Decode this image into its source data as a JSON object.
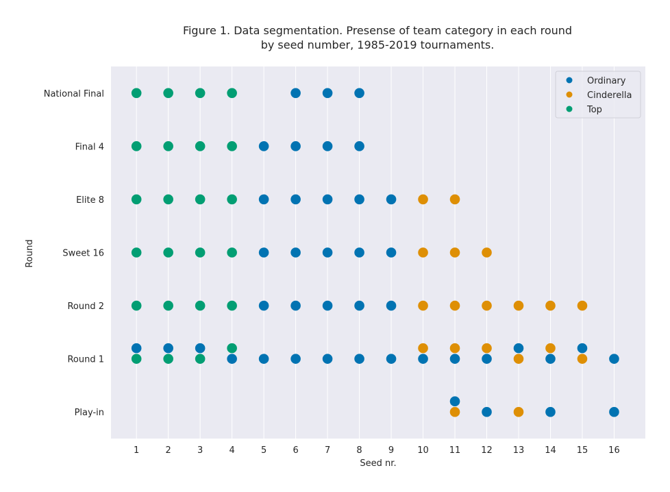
{
  "chart_data": {
    "type": "scatter",
    "title_lines": [
      "Figure 1. Data segmentation. Presense of team category in each round",
      "by seed number, 1985-2019 tournaments."
    ],
    "xlabel": "Seed nr.",
    "ylabel": "Round",
    "x_ticks": [
      1,
      2,
      3,
      4,
      5,
      6,
      7,
      8,
      9,
      10,
      11,
      12,
      13,
      14,
      15,
      16
    ],
    "x_tick_labels": [
      "1",
      "2",
      "3",
      "4",
      "5",
      "6",
      "7",
      "8",
      "9",
      "10",
      "11",
      "12",
      "13",
      "14",
      "15",
      "16"
    ],
    "rounds": [
      "Play-in",
      "Round 1",
      "Round 2",
      "Sweet 16",
      "Elite 8",
      "Final 4",
      "National Final"
    ],
    "xlim": [
      0.2,
      16.98
    ],
    "ylim": [
      -0.5,
      6.5
    ],
    "grid": "vertical",
    "legend_position": "top-right",
    "colors": {
      "background": "#eaeaf2",
      "grid": "#ffffff",
      "Ordinary": "#0173b2",
      "Cinderella": "#de8f05",
      "Top": "#029e73"
    },
    "series": [
      {
        "name": "Ordinary",
        "points": [
          {
            "x": 11,
            "y": "Play-in",
            "offset": 0.2
          },
          {
            "x": 12,
            "y": "Play-in",
            "offset": 0
          },
          {
            "x": 14,
            "y": "Play-in",
            "offset": 0
          },
          {
            "x": 16,
            "y": "Play-in",
            "offset": 0
          },
          {
            "x": 1,
            "y": "Round 1",
            "offset": 0.2
          },
          {
            "x": 2,
            "y": "Round 1",
            "offset": 0.2
          },
          {
            "x": 3,
            "y": "Round 1",
            "offset": 0.2
          },
          {
            "x": 13,
            "y": "Round 1",
            "offset": 0.2
          },
          {
            "x": 15,
            "y": "Round 1",
            "offset": 0.2
          },
          {
            "x": 4,
            "y": "Round 1",
            "offset": 0
          },
          {
            "x": 5,
            "y": "Round 1",
            "offset": 0
          },
          {
            "x": 6,
            "y": "Round 1",
            "offset": 0
          },
          {
            "x": 7,
            "y": "Round 1",
            "offset": 0
          },
          {
            "x": 8,
            "y": "Round 1",
            "offset": 0
          },
          {
            "x": 9,
            "y": "Round 1",
            "offset": 0
          },
          {
            "x": 10,
            "y": "Round 1",
            "offset": 0
          },
          {
            "x": 11,
            "y": "Round 1",
            "offset": 0
          },
          {
            "x": 12,
            "y": "Round 1",
            "offset": 0
          },
          {
            "x": 14,
            "y": "Round 1",
            "offset": 0
          },
          {
            "x": 16,
            "y": "Round 1",
            "offset": 0
          },
          {
            "x": 5,
            "y": "Round 2",
            "offset": 0
          },
          {
            "x": 6,
            "y": "Round 2",
            "offset": 0
          },
          {
            "x": 7,
            "y": "Round 2",
            "offset": 0
          },
          {
            "x": 8,
            "y": "Round 2",
            "offset": 0
          },
          {
            "x": 9,
            "y": "Round 2",
            "offset": 0
          },
          {
            "x": 5,
            "y": "Sweet 16",
            "offset": 0
          },
          {
            "x": 6,
            "y": "Sweet 16",
            "offset": 0
          },
          {
            "x": 7,
            "y": "Sweet 16",
            "offset": 0
          },
          {
            "x": 8,
            "y": "Sweet 16",
            "offset": 0
          },
          {
            "x": 9,
            "y": "Sweet 16",
            "offset": 0
          },
          {
            "x": 5,
            "y": "Elite 8",
            "offset": 0
          },
          {
            "x": 6,
            "y": "Elite 8",
            "offset": 0
          },
          {
            "x": 7,
            "y": "Elite 8",
            "offset": 0
          },
          {
            "x": 8,
            "y": "Elite 8",
            "offset": 0
          },
          {
            "x": 9,
            "y": "Elite 8",
            "offset": 0
          },
          {
            "x": 5,
            "y": "Final 4",
            "offset": 0
          },
          {
            "x": 6,
            "y": "Final 4",
            "offset": 0
          },
          {
            "x": 7,
            "y": "Final 4",
            "offset": 0
          },
          {
            "x": 8,
            "y": "Final 4",
            "offset": 0
          },
          {
            "x": 6,
            "y": "National Final",
            "offset": 0
          },
          {
            "x": 7,
            "y": "National Final",
            "offset": 0
          },
          {
            "x": 8,
            "y": "National Final",
            "offset": 0
          }
        ]
      },
      {
        "name": "Cinderella",
        "points": [
          {
            "x": 11,
            "y": "Play-in",
            "offset": 0
          },
          {
            "x": 13,
            "y": "Play-in",
            "offset": 0
          },
          {
            "x": 10,
            "y": "Round 1",
            "offset": 0.2
          },
          {
            "x": 11,
            "y": "Round 1",
            "offset": 0.2
          },
          {
            "x": 12,
            "y": "Round 1",
            "offset": 0.2
          },
          {
            "x": 14,
            "y": "Round 1",
            "offset": 0.2
          },
          {
            "x": 13,
            "y": "Round 1",
            "offset": 0
          },
          {
            "x": 15,
            "y": "Round 1",
            "offset": 0
          },
          {
            "x": 10,
            "y": "Round 2",
            "offset": 0
          },
          {
            "x": 11,
            "y": "Round 2",
            "offset": 0
          },
          {
            "x": 12,
            "y": "Round 2",
            "offset": 0
          },
          {
            "x": 13,
            "y": "Round 2",
            "offset": 0
          },
          {
            "x": 14,
            "y": "Round 2",
            "offset": 0
          },
          {
            "x": 15,
            "y": "Round 2",
            "offset": 0
          },
          {
            "x": 10,
            "y": "Sweet 16",
            "offset": 0
          },
          {
            "x": 11,
            "y": "Sweet 16",
            "offset": 0
          },
          {
            "x": 12,
            "y": "Sweet 16",
            "offset": 0
          },
          {
            "x": 10,
            "y": "Elite 8",
            "offset": 0
          },
          {
            "x": 11,
            "y": "Elite 8",
            "offset": 0
          }
        ]
      },
      {
        "name": "Top",
        "points": [
          {
            "x": 4,
            "y": "Round 1",
            "offset": 0.2
          },
          {
            "x": 1,
            "y": "Round 1",
            "offset": 0
          },
          {
            "x": 2,
            "y": "Round 1",
            "offset": 0
          },
          {
            "x": 3,
            "y": "Round 1",
            "offset": 0
          },
          {
            "x": 1,
            "y": "Round 2",
            "offset": 0
          },
          {
            "x": 2,
            "y": "Round 2",
            "offset": 0
          },
          {
            "x": 3,
            "y": "Round 2",
            "offset": 0
          },
          {
            "x": 4,
            "y": "Round 2",
            "offset": 0
          },
          {
            "x": 1,
            "y": "Sweet 16",
            "offset": 0
          },
          {
            "x": 2,
            "y": "Sweet 16",
            "offset": 0
          },
          {
            "x": 3,
            "y": "Sweet 16",
            "offset": 0
          },
          {
            "x": 4,
            "y": "Sweet 16",
            "offset": 0
          },
          {
            "x": 1,
            "y": "Elite 8",
            "offset": 0
          },
          {
            "x": 2,
            "y": "Elite 8",
            "offset": 0
          },
          {
            "x": 3,
            "y": "Elite 8",
            "offset": 0
          },
          {
            "x": 4,
            "y": "Elite 8",
            "offset": 0
          },
          {
            "x": 1,
            "y": "Final 4",
            "offset": 0
          },
          {
            "x": 2,
            "y": "Final 4",
            "offset": 0
          },
          {
            "x": 3,
            "y": "Final 4",
            "offset": 0
          },
          {
            "x": 4,
            "y": "Final 4",
            "offset": 0
          },
          {
            "x": 1,
            "y": "National Final",
            "offset": 0
          },
          {
            "x": 2,
            "y": "National Final",
            "offset": 0
          },
          {
            "x": 3,
            "y": "National Final",
            "offset": 0
          },
          {
            "x": 4,
            "y": "National Final",
            "offset": 0
          }
        ]
      }
    ]
  }
}
